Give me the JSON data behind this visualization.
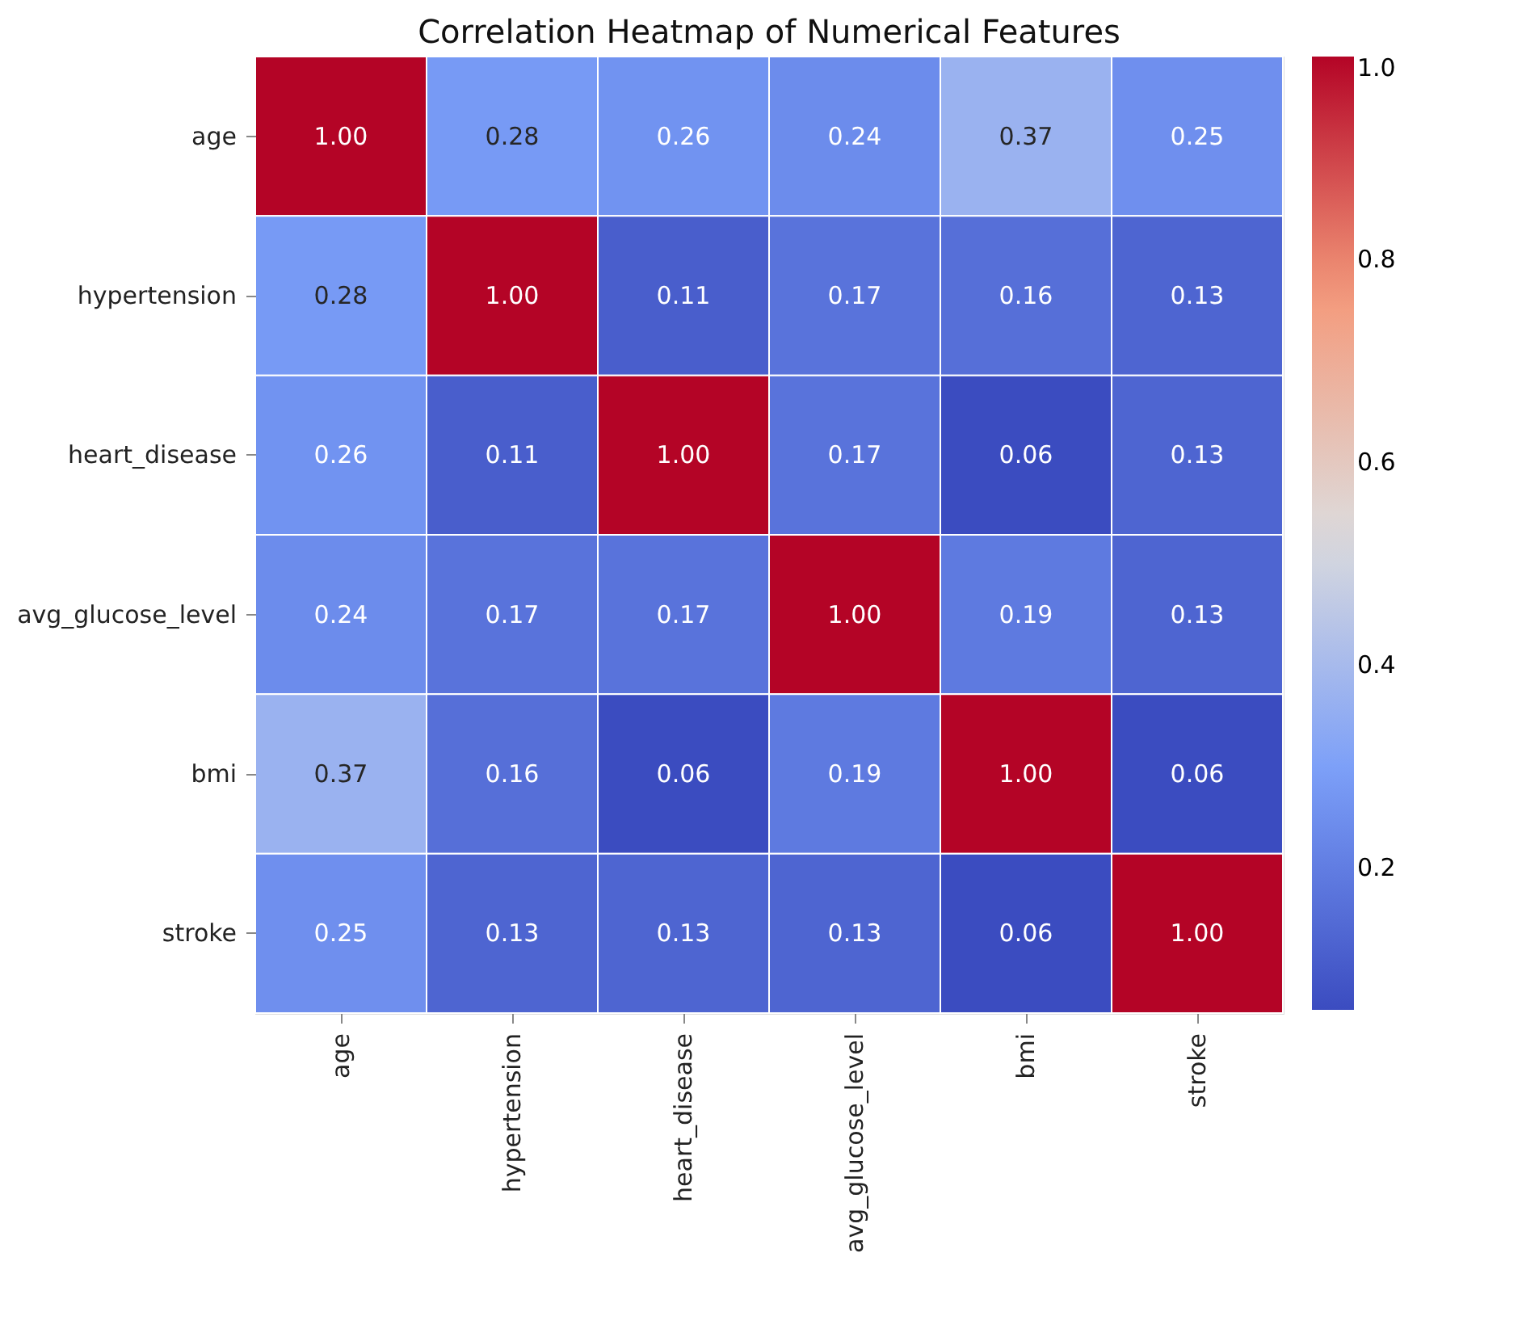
{
  "chart_data": {
    "type": "heatmap",
    "title": "Correlation Heatmap of Numerical Features",
    "categories": [
      "age",
      "hypertension",
      "heart_disease",
      "avg_glucose_level",
      "bmi",
      "stroke"
    ],
    "y_categories": [
      "age",
      "hypertension",
      "heart_disease",
      "avg_glucose_level",
      "bmi",
      "stroke"
    ],
    "cells": [
      [
        1.0,
        0.28,
        0.26,
        0.24,
        0.37,
        0.25
      ],
      [
        0.28,
        1.0,
        0.11,
        0.17,
        0.16,
        0.13
      ],
      [
        0.26,
        0.11,
        1.0,
        0.17,
        0.06,
        0.13
      ],
      [
        0.24,
        0.17,
        0.17,
        1.0,
        0.19,
        0.13
      ],
      [
        0.37,
        0.16,
        0.06,
        0.19,
        1.0,
        0.06
      ],
      [
        0.25,
        0.13,
        0.13,
        0.13,
        0.06,
        1.0
      ]
    ],
    "cell_labels": [
      [
        "1.00",
        "0.28",
        "0.26",
        "0.24",
        "0.37",
        "0.25"
      ],
      [
        "0.28",
        "1.00",
        "0.11",
        "0.17",
        "0.16",
        "0.13"
      ],
      [
        "0.26",
        "0.11",
        "1.00",
        "0.17",
        "0.06",
        "0.13"
      ],
      [
        "0.24",
        "0.17",
        "0.17",
        "1.00",
        "0.19",
        "0.13"
      ],
      [
        "0.37",
        "0.16",
        "0.06",
        "0.19",
        "1.00",
        "0.06"
      ],
      [
        "0.25",
        "0.13",
        "0.13",
        "0.13",
        "0.06",
        "1.00"
      ]
    ],
    "clim": [
      0.06,
      1.0
    ],
    "cticks": [
      {
        "value": 0.2,
        "label": "0.2"
      },
      {
        "value": 0.4,
        "label": "0.4"
      },
      {
        "value": 0.6,
        "label": "0.6"
      },
      {
        "value": 0.8,
        "label": "0.8"
      },
      {
        "value": 1.0,
        "label": "1.0"
      }
    ],
    "data_labels": true
  }
}
